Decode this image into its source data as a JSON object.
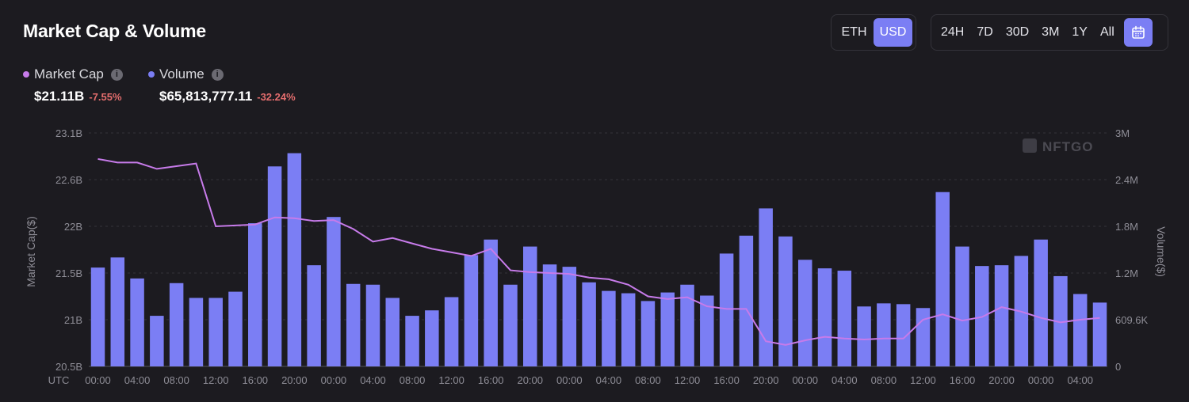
{
  "header": {
    "title": "Market Cap & Volume"
  },
  "currency_toggle": {
    "options": [
      "ETH",
      "USD"
    ],
    "selected": "USD"
  },
  "range_toggle": {
    "options": [
      "24H",
      "7D",
      "30D",
      "3M",
      "1Y",
      "All"
    ],
    "calendar_icon": "calendar-icon"
  },
  "legend": {
    "market_cap": {
      "label": "Market Cap",
      "value": "$21.11B",
      "change": "-7.55%",
      "color": "#c77bea"
    },
    "volume": {
      "label": "Volume",
      "value": "$65,813,777.11",
      "change": "-32.24%",
      "color": "#7b7ef4"
    }
  },
  "watermark": "NFTGO",
  "chart_data": {
    "type": "bar",
    "left_axis": {
      "title": "Market Cap($)",
      "ticks": [
        "23.1B",
        "22.6B",
        "22B",
        "21.5B",
        "21B",
        "20.5B"
      ],
      "range": [
        20.5,
        23.1
      ],
      "unit": "B"
    },
    "right_axis": {
      "title": "Volume($)",
      "ticks": [
        "3M",
        "2.4M",
        "1.8M",
        "1.2M",
        "609.6K",
        "0"
      ],
      "range": [
        0,
        3.0
      ],
      "unit": "M"
    },
    "x_ticks": [
      "UTC",
      "00:00",
      "04:00",
      "08:00",
      "12:00",
      "16:00",
      "20:00",
      "00:00",
      "04:00",
      "08:00",
      "12:00",
      "16:00",
      "20:00",
      "00:00",
      "04:00",
      "08:00",
      "12:00",
      "16:00",
      "20:00",
      "00:00",
      "04:00",
      "08:00",
      "12:00",
      "16:00",
      "20:00",
      "00:00",
      "04:00"
    ],
    "grid": true,
    "series": [
      {
        "name": "Volume",
        "type": "bar",
        "axis": "right",
        "values": [
          1.27,
          1.4,
          1.13,
          0.65,
          1.07,
          0.88,
          0.88,
          0.96,
          1.84,
          2.57,
          2.74,
          1.3,
          1.92,
          1.06,
          1.05,
          0.88,
          0.65,
          0.72,
          0.89,
          1.43,
          1.63,
          1.05,
          1.54,
          1.31,
          1.28,
          1.08,
          0.97,
          0.94,
          0.84,
          0.95,
          1.05,
          0.91,
          1.45,
          1.68,
          2.03,
          1.67,
          1.37,
          1.26,
          1.23,
          0.77,
          0.81,
          0.8,
          0.75,
          2.24,
          1.54,
          1.29,
          1.3,
          1.42,
          1.63,
          1.16,
          0.93,
          0.82
        ]
      },
      {
        "name": "Market Cap",
        "type": "line",
        "axis": "left",
        "values": [
          22.81,
          22.77,
          22.77,
          22.7,
          22.73,
          22.76,
          22.06,
          22.07,
          22.08,
          22.16,
          22.15,
          22.12,
          22.13,
          22.03,
          21.89,
          21.93,
          21.87,
          21.81,
          21.77,
          21.73,
          21.81,
          21.57,
          21.55,
          21.54,
          21.53,
          21.49,
          21.47,
          21.41,
          21.28,
          21.25,
          21.27,
          21.17,
          21.14,
          21.14,
          20.78,
          20.74,
          20.79,
          20.83,
          20.81,
          20.8,
          20.81,
          20.81,
          21.02,
          21.08,
          21.01,
          21.05,
          21.16,
          21.11,
          21.04,
          20.99,
          21.02,
          21.04
        ]
      }
    ]
  }
}
